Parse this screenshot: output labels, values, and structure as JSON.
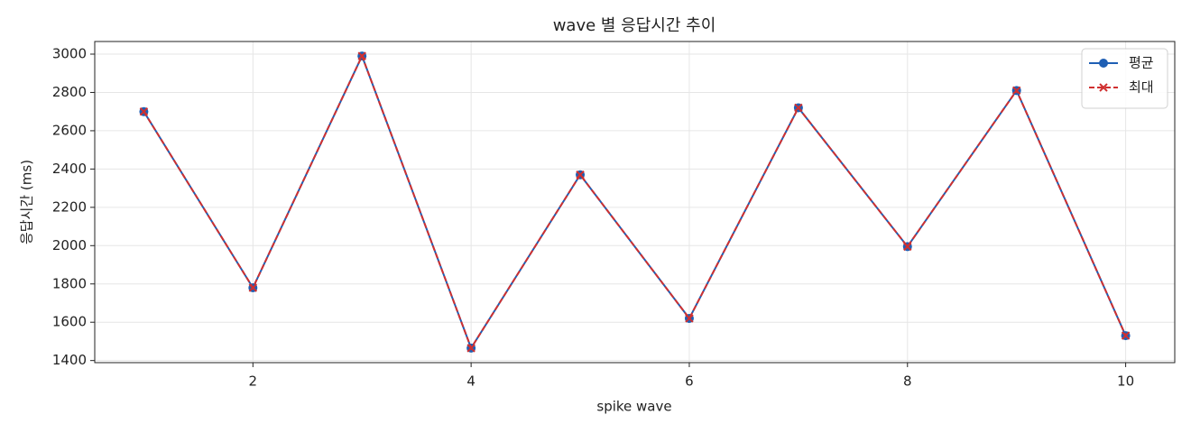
{
  "chart_data": {
    "type": "line",
    "title": "wave 별 응답시간 추이",
    "xlabel": "spike wave",
    "ylabel": "응답시간 (ms)",
    "x": [
      1,
      2,
      3,
      4,
      5,
      6,
      7,
      8,
      9,
      10
    ],
    "series": [
      {
        "name": "평균",
        "color": "#1f5fb4",
        "marker": "o",
        "linestyle": "solid",
        "values": [
          2700,
          1780,
          2990,
          1465,
          2370,
          1620,
          2720,
          1995,
          2810,
          1530
        ]
      },
      {
        "name": "최대",
        "color": "#d03030",
        "marker": "x",
        "linestyle": "dashed",
        "values": [
          2700,
          1780,
          2990,
          1465,
          2370,
          1620,
          2720,
          1995,
          2810,
          1530
        ]
      }
    ],
    "xlim": [
      0.55,
      10.45
    ],
    "xticks": [
      2,
      4,
      6,
      8,
      10
    ],
    "ylim": [
      1389,
      3066
    ],
    "yticks": [
      1400,
      1600,
      1800,
      2000,
      2200,
      2400,
      2600,
      2800,
      3000
    ],
    "grid": true,
    "legend": "upper right"
  }
}
